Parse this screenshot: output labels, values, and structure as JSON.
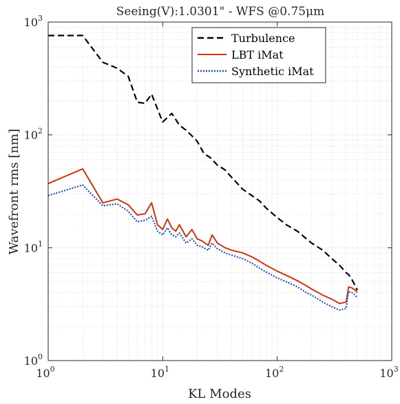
{
  "chart_data": {
    "type": "line",
    "title": "Seeing(V):1.0301\" - WFS @0.75μm",
    "xlabel": "KL Modes",
    "ylabel": "Wavefront rms [nm]",
    "x_scale": "log",
    "y_scale": "log",
    "xlim": [
      1,
      1000
    ],
    "ylim": [
      1,
      1000
    ],
    "x_ticks": [
      {
        "base": "10",
        "exp": "0",
        "value": 1
      },
      {
        "base": "10",
        "exp": "1",
        "value": 10
      },
      {
        "base": "10",
        "exp": "2",
        "value": 100
      },
      {
        "base": "10",
        "exp": "3",
        "value": 1000
      }
    ],
    "y_ticks": [
      {
        "base": "10",
        "exp": "0",
        "value": 1
      },
      {
        "base": "10",
        "exp": "1",
        "value": 10
      },
      {
        "base": "10",
        "exp": "2",
        "value": 100
      },
      {
        "base": "10",
        "exp": "3",
        "value": 1000
      }
    ],
    "grid": true,
    "legend_position": "top-right",
    "series": [
      {
        "name": "Turbulence",
        "color": "#000000",
        "style": "dashed",
        "x": [
          1,
          2,
          3,
          4,
          5,
          6,
          7,
          8,
          10,
          12,
          14,
          16,
          18,
          20,
          23,
          26,
          30,
          35,
          40,
          50,
          60,
          70,
          80,
          100,
          120,
          150,
          180,
          200,
          250,
          300,
          350,
          400,
          420,
          450,
          480,
          500
        ],
        "y": [
          760,
          760,
          440,
          390,
          330,
          195,
          190,
          230,
          130,
          155,
          122,
          110,
          98,
          88,
          68,
          63,
          54,
          49,
          42,
          33,
          29,
          26,
          22.5,
          18.5,
          16,
          14,
          12,
          11,
          9.5,
          8,
          7,
          6,
          5.8,
          5.2,
          4.6,
          4.2
        ]
      },
      {
        "name": "LBT iMat",
        "color": "#d0330b",
        "style": "solid",
        "x": [
          1,
          2,
          3,
          4,
          5,
          6,
          7,
          8,
          9,
          10,
          11,
          12,
          13,
          14,
          16,
          18,
          20,
          22,
          25,
          27,
          30,
          35,
          40,
          50,
          60,
          70,
          80,
          100,
          120,
          150,
          180,
          200,
          250,
          300,
          350,
          400,
          420,
          450,
          480,
          500
        ],
        "y": [
          37,
          50,
          25,
          27,
          24,
          19.5,
          20,
          25,
          16,
          14.5,
          18,
          15,
          14,
          16,
          12.5,
          14.5,
          12,
          11.5,
          10.5,
          13,
          11,
          10,
          9.5,
          9,
          8.3,
          7.6,
          7,
          6.2,
          5.7,
          5.1,
          4.6,
          4.3,
          3.8,
          3.5,
          3.2,
          3.3,
          4.5,
          4.4,
          4.2,
          4.0
        ]
      },
      {
        "name": "Synthetic iMat",
        "color": "#1f4fc4",
        "style": "dotted",
        "x": [
          1,
          2,
          3,
          4,
          5,
          6,
          7,
          8,
          9,
          10,
          11,
          12,
          13,
          14,
          16,
          18,
          20,
          22,
          25,
          27,
          30,
          35,
          40,
          50,
          60,
          70,
          80,
          100,
          120,
          150,
          180,
          200,
          250,
          300,
          350,
          400,
          420,
          450,
          480,
          500
        ],
        "y": [
          29,
          36,
          23.5,
          24.5,
          21,
          17,
          17.5,
          19,
          14,
          13,
          15,
          13,
          12.5,
          13.5,
          11,
          12,
          10.5,
          10.2,
          9.5,
          11,
          9.8,
          9,
          8.6,
          8,
          7.3,
          6.6,
          6.1,
          5.4,
          5,
          4.5,
          4.0,
          3.8,
          3.3,
          3.0,
          2.8,
          2.9,
          4.1,
          4.0,
          3.8,
          3.6
        ]
      }
    ]
  }
}
